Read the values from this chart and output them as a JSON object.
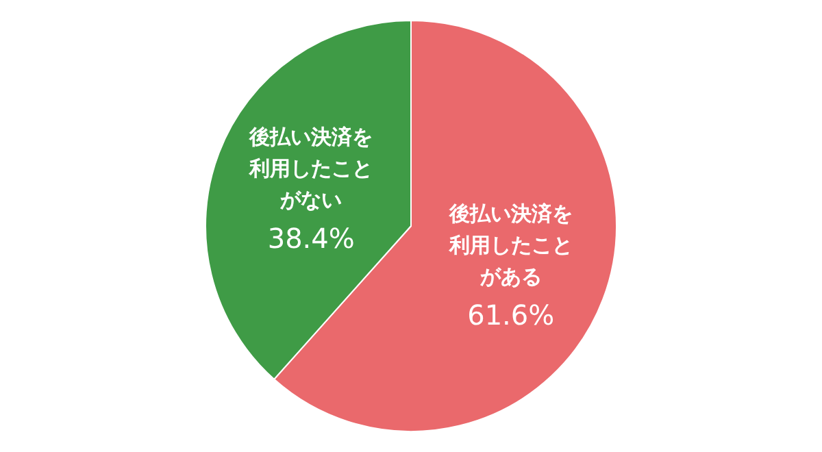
{
  "chart_data": {
    "type": "pie",
    "categories": [
      "後払い決済を利用したことがある",
      "後払い決済を利用したことがない"
    ],
    "values": [
      61.6,
      38.4
    ],
    "colors": [
      "#ea696c",
      "#3f9b46"
    ],
    "value_labels": [
      "61.6%",
      "38.4%"
    ],
    "legend": false
  }
}
